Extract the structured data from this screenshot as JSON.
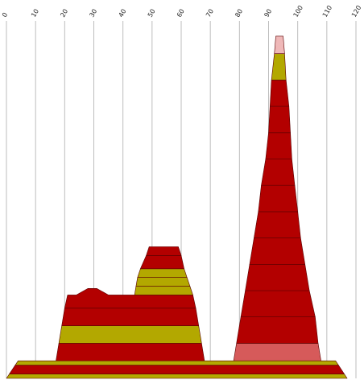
{
  "chart_data": {
    "type": "area",
    "title": "",
    "xlabel": "",
    "ylabel": "",
    "xlim": [
      0,
      120
    ],
    "x_ticks": [
      0,
      10,
      20,
      30,
      40,
      50,
      60,
      70,
      80,
      90,
      100,
      110,
      120
    ],
    "x_tick_labels": [
      "0",
      "10",
      "20",
      "30",
      "40",
      "50",
      "60",
      "70",
      "80",
      "90",
      "100",
      "110",
      "120"
    ],
    "grid": true,
    "legend": "none",
    "colors": {
      "dark_red": "#b30000",
      "olive": "#b3a800",
      "light_red": "#d65a5a",
      "pink": "#efb8b8"
    },
    "layers": [
      {
        "color": "olive",
        "depth": [
          0,
          1
        ],
        "xl": [
          0,
          1
        ],
        "xr": [
          117,
          116
        ],
        "bump": null
      },
      {
        "color": "dark_red",
        "depth": [
          1,
          3
        ],
        "xl": [
          1,
          3
        ],
        "xr": [
          116,
          114
        ],
        "bump": null
      },
      {
        "color": "olive",
        "depth": [
          3,
          4
        ],
        "xl": [
          3,
          4
        ],
        "xr": [
          114,
          113
        ],
        "bump": null
      },
      {
        "color": "light_red",
        "depth": [
          4,
          8
        ],
        "xl": [
          78,
          79
        ],
        "xr": [
          108,
          107
        ],
        "bump": null
      },
      {
        "color": "dark_red",
        "depth": [
          8,
          14
        ],
        "xl": [
          79,
          80.5
        ],
        "xr": [
          107,
          106
        ],
        "bump": null
      },
      {
        "color": "dark_red",
        "depth": [
          14,
          20
        ],
        "xl": [
          80.5,
          82
        ],
        "xr": [
          106,
          104
        ],
        "bump": null
      },
      {
        "color": "dark_red",
        "depth": [
          20,
          26
        ],
        "xl": [
          82,
          83.5
        ],
        "xr": [
          104,
          102.5
        ],
        "bump": null
      },
      {
        "color": "dark_red",
        "depth": [
          26,
          32
        ],
        "xl": [
          83.5,
          85
        ],
        "xr": [
          102.5,
          101
        ],
        "bump": null
      },
      {
        "color": "dark_red",
        "depth": [
          32,
          38
        ],
        "xl": [
          85,
          86.5
        ],
        "xr": [
          101,
          100
        ],
        "bump": null
      },
      {
        "color": "dark_red",
        "depth": [
          38,
          44
        ],
        "xl": [
          86.5,
          87.5
        ],
        "xr": [
          100,
          99
        ],
        "bump": null
      },
      {
        "color": "dark_red",
        "depth": [
          44,
          50
        ],
        "xl": [
          87.5,
          89
        ],
        "xr": [
          99,
          98
        ],
        "bump": null
      },
      {
        "color": "dark_red",
        "depth": [
          50,
          56
        ],
        "xl": [
          89,
          90
        ],
        "xr": [
          98,
          97.5
        ],
        "bump": null
      },
      {
        "color": "dark_red",
        "depth": [
          56,
          62
        ],
        "xl": [
          90,
          90.5
        ],
        "xr": [
          97.5,
          97
        ],
        "bump": null
      },
      {
        "color": "dark_red",
        "depth": [
          62,
          68
        ],
        "xl": [
          90.5,
          91
        ],
        "xr": [
          97,
          96
        ],
        "bump": null
      },
      {
        "color": "olive",
        "depth": [
          68,
          74
        ],
        "xl": [
          91,
          92
        ],
        "xr": [
          96,
          95.5
        ],
        "bump": null
      },
      {
        "color": "pink",
        "depth": [
          74,
          78
        ],
        "xl": [
          92,
          92.5
        ],
        "xr": [
          95.5,
          95
        ],
        "bump": null
      },
      {
        "color": "dark_red",
        "depth": [
          4,
          8
        ],
        "xl": [
          17,
          18
        ],
        "xr": [
          68,
          67
        ],
        "bump": null
      },
      {
        "color": "olive",
        "depth": [
          8,
          12
        ],
        "xl": [
          18,
          19
        ],
        "xr": [
          67,
          66
        ],
        "bump": null
      },
      {
        "color": "dark_red",
        "depth": [
          12,
          16
        ],
        "xl": [
          19,
          20
        ],
        "xr": [
          66,
          65
        ],
        "bump": null
      },
      {
        "color": "dark_red",
        "depth": [
          16,
          19
        ],
        "xl": [
          20,
          21
        ],
        "xr": [
          65,
          64
        ],
        "bump": {
          "x": [
            24,
            28,
            31,
            35
          ],
          "top": 20.5
        }
      },
      {
        "color": "olive",
        "depth": [
          19,
          21
        ],
        "xl": [
          44,
          44.5
        ],
        "xr": [
          64,
          63
        ],
        "bump": null
      },
      {
        "color": "olive",
        "depth": [
          21,
          23
        ],
        "xl": [
          44.5,
          45
        ],
        "xr": [
          63,
          62
        ],
        "bump": null
      },
      {
        "color": "olive",
        "depth": [
          23,
          25
        ],
        "xl": [
          45,
          46
        ],
        "xr": [
          62,
          61
        ],
        "bump": null
      },
      {
        "color": "dark_red",
        "depth": [
          25,
          28
        ],
        "xl": [
          46,
          48
        ],
        "xr": [
          61,
          60
        ],
        "bump": null
      },
      {
        "color": "dark_red",
        "depth": [
          28,
          30
        ],
        "xl": [
          48,
          49
        ],
        "xr": [
          60,
          59
        ],
        "bump": null
      }
    ],
    "depth_max": 80
  }
}
